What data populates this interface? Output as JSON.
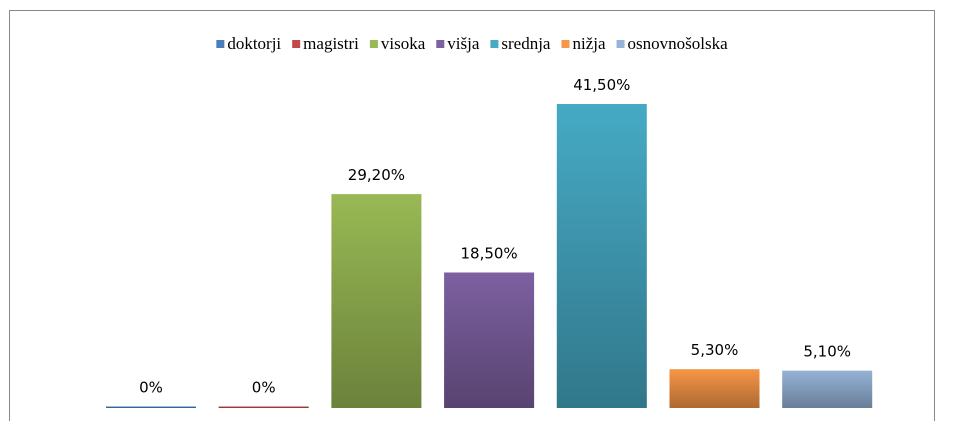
{
  "chart_data": {
    "type": "bar",
    "series": [
      {
        "name": "doktorji",
        "color": "#4a7ebb",
        "values": [
          0
        ],
        "value_labels": [
          "0%"
        ]
      },
      {
        "name": "magistri",
        "color": "#be4b48",
        "values": [
          0
        ],
        "value_labels": [
          "0%"
        ]
      },
      {
        "name": "visoka",
        "color": "#98b954",
        "values": [
          29.2
        ],
        "value_labels": [
          "29,20%"
        ]
      },
      {
        "name": "višja",
        "color": "#7d60a0",
        "values": [
          18.5
        ],
        "value_labels": [
          "18,50%"
        ]
      },
      {
        "name": "srednja",
        "color": "#46aac5",
        "values": [
          41.5
        ],
        "value_labels": [
          "41,50%"
        ]
      },
      {
        "name": "nižja",
        "color": "#f79646",
        "values": [
          5.3
        ],
        "value_labels": [
          "5,30%"
        ]
      },
      {
        "name": "osnovnošolska",
        "color": "#95b3d7",
        "values": [
          5.1
        ],
        "value_labels": [
          "5,10%"
        ]
      }
    ],
    "legend": "top"
  }
}
